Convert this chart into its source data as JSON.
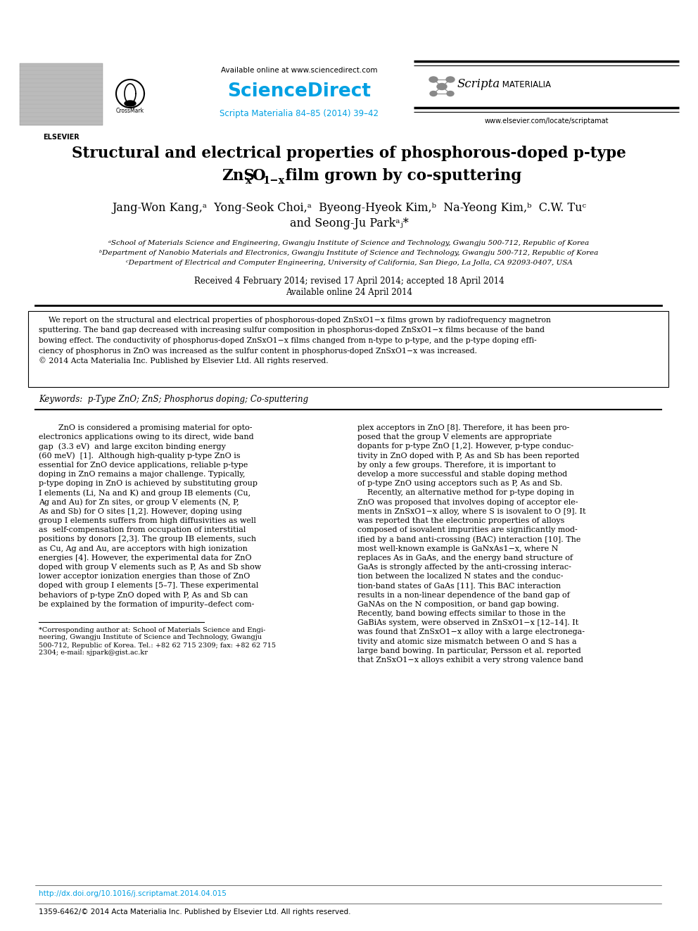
{
  "bg_color": "#ffffff",
  "sciencedirect_color": "#00a0e3",
  "journal_ref_color": "#00a0e3",
  "journal_ref": "Scripta Materialia 84–85 (2014) 39–42",
  "available_online": "Available online at www.sciencedirect.com",
  "website": "www.elsevier.com/locate/scriptamat",
  "title_line1": "Structural and electrical properties of phosphorous-doped p-type",
  "title_line2_pre": "ZnS",
  "title_line2_sub1": "x",
  "title_line2_mid": "O",
  "title_line2_sub2": "1−x",
  "title_line2_post": " film grown by co-sputtering",
  "authors_line1": "Jang-Won Kang,ᵃ  Yong-Seok Choi,ᵃ  Byeong-Hyeok Kim,ᵇ  Na-Yeong Kim,ᵇ  C.W. Tuᶜ",
  "authors_line2": "and Seong-Ju Parkᵃⱼ*",
  "affil1": "ᵃSchool of Materials Science and Engineering, Gwangju Institute of Science and Technology, Gwangju 500-712, Republic of Korea",
  "affil2": "ᵇDepartment of Nanobio Materials and Electronics, Gwangju Institute of Science and Technology, Gwangju 500-712, Republic of Korea",
  "affil3": "ᶜDepartment of Electrical and Computer Engineering, University of California, San Diego, La Jolla, CA 92093-0407, USA",
  "received_text": "Received 4 February 2014; revised 17 April 2014; accepted 18 April 2014",
  "available_text": "Available online 24 April 2014",
  "abstract_lines": [
    "    We report on the structural and electrical properties of phosphorous-doped ZnSxO1−x films grown by radiofrequency magnetron",
    "sputtering. The band gap decreased with increasing sulfur composition in phosphorus-doped ZnSxO1−x films because of the band",
    "bowing effect. The conductivity of phosphorus-doped ZnSxO1−x films changed from n-type to p-type, and the p-type doping effi-",
    "ciency of phosphorus in ZnO was increased as the sulfur content in phosphorus-doped ZnSxO1−x was increased."
  ],
  "copyright_text": "© 2014 Acta Materialia Inc. Published by Elsevier Ltd. All rights reserved.",
  "keywords_text": "Keywords:  p-Type ZnO; ZnS; Phosphorus doping; Co-sputtering",
  "col1_lines": [
    "        ZnO is considered a promising material for opto-",
    "electronics applications owing to its direct, wide band",
    "gap  (3.3 eV)  and large exciton binding energy",
    "(60 meV)  [1].  Although high-quality p-type ZnO is",
    "essential for ZnO device applications, reliable p-type",
    "doping in ZnO remains a major challenge. Typically,",
    "p-type doping in ZnO is achieved by substituting group",
    "I elements (Li, Na and K) and group IB elements (Cu,",
    "Ag and Au) for Zn sites, or group V elements (N, P,",
    "As and Sb) for O sites [1,2]. However, doping using",
    "group I elements suffers from high diffusivities as well",
    "as  self-compensation from occupation of interstitial",
    "positions by donors [2,3]. The group IB elements, such",
    "as Cu, Ag and Au, are acceptors with high ionization",
    "energies [4]. However, the experimental data for ZnO",
    "doped with group V elements such as P, As and Sb show",
    "lower acceptor ionization energies than those of ZnO",
    "doped with group I elements [5–7]. These experimental",
    "behaviors of p-type ZnO doped with P, As and Sb can",
    "be explained by the formation of impurity–defect com-"
  ],
  "col2_lines": [
    "plex acceptors in ZnO [8]. Therefore, it has been pro-",
    "posed that the group V elements are appropriate",
    "dopants for p-type ZnO [1,2]. However, p-type conduc-",
    "tivity in ZnO doped with P, As and Sb has been reported",
    "by only a few groups. Therefore, it is important to",
    "develop a more successful and stable doping method",
    "of p-type ZnO using acceptors such as P, As and Sb.",
    "    Recently, an alternative method for p-type doping in",
    "ZnO was proposed that involves doping of acceptor ele-",
    "ments in ZnSxO1−x alloy, where S is isovalent to O [9]. It",
    "was reported that the electronic properties of alloys",
    "composed of isovalent impurities are significantly mod-",
    "ified by a band anti-crossing (BAC) interaction [10]. The",
    "most well-known example is GaNxAs1−x, where N",
    "replaces As in GaAs, and the energy band structure of",
    "GaAs is strongly affected by the anti-crossing interac-",
    "tion between the localized N states and the conduc-",
    "tion-band states of GaAs [11]. This BAC interaction",
    "results in a non-linear dependence of the band gap of",
    "GaNAs on the N composition, or band gap bowing.",
    "Recently, band bowing effects similar to those in the",
    "GaBiAs system, were observed in ZnSxO1−x [12–14]. It",
    "was found that ZnSxO1−x alloy with a large electronega-",
    "tivity and atomic size mismatch between O and S has a",
    "large band bowing. In particular, Persson et al. reported",
    "that ZnSxO1−x alloys exhibit a very strong valence band"
  ],
  "footnote_lines": [
    "*Corresponding author at: School of Materials Science and Engi-",
    "neering, Gwangju Institute of Science and Technology, Gwangju",
    "500-712, Republic of Korea. Tel.: +82 62 715 2309; fax: +82 62 715",
    "2304; e-mail: sjpark@gist.ac.kr"
  ],
  "doi_text": "http://dx.doi.org/10.1016/j.scriptamat.2014.04.015",
  "issn_text": "1359-6462/© 2014 Acta Materialia Inc. Published by Elsevier Ltd. All rights reserved."
}
